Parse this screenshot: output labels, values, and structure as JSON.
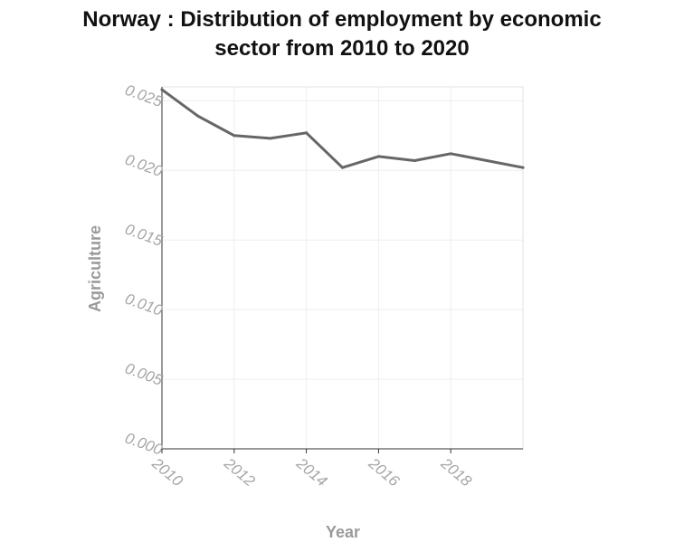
{
  "chart_data": {
    "type": "line",
    "title_line1": "Norway : Distribution of employment by economic",
    "title_line2": "sector from 2010 to 2020",
    "xlabel": "Year",
    "ylabel": "Agriculture",
    "xlim": [
      2010,
      2020
    ],
    "ylim": [
      0,
      0.026
    ],
    "x_ticks": [
      "2010",
      "2012",
      "2014",
      "2016",
      "2018"
    ],
    "y_ticks": [
      "0.000",
      "0.005",
      "0.010",
      "0.015",
      "0.020",
      "0.025"
    ],
    "grid": true,
    "series": [
      {
        "x": [
          2010,
          2011,
          2012,
          2013,
          2014,
          2015,
          2016,
          2017,
          2018,
          2019,
          2020
        ],
        "values": [
          0.0258,
          0.0239,
          0.0225,
          0.0223,
          0.0227,
          0.0202,
          0.021,
          0.0207,
          0.0212,
          0.0207,
          0.0202
        ],
        "color": "#666666"
      }
    ]
  }
}
